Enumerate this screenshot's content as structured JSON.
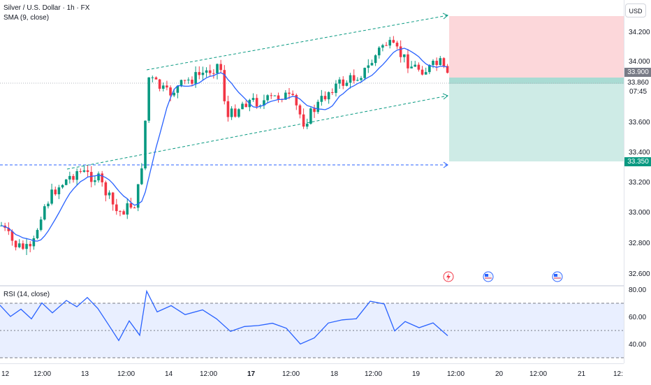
{
  "legend": {
    "symbol": "Silver / U.S. Dollar · 1h · FX",
    "sma": "SMA (9, close)",
    "rsi": "RSI (14, close)"
  },
  "currency": "USD",
  "price_axis": [
    "34.200",
    "34.000",
    "33.600",
    "33.400",
    "33.200",
    "33.000",
    "32.800",
    "32.600"
  ],
  "price_labels": {
    "current": "33.900",
    "last": "33.860",
    "countdown": "07:45",
    "target": "33.350"
  },
  "rsi_axis": [
    "80.00",
    "60.00",
    "40.00"
  ],
  "time_axis": [
    "12",
    "12:00",
    "13",
    "12:00",
    "14",
    "12:00",
    "17",
    "12:00",
    "18",
    "12:00",
    "19",
    "12:00",
    "20",
    "12:00",
    "21",
    "12:"
  ],
  "colors": {
    "up": "#089981",
    "down": "#f23645",
    "sma": "#2962ff",
    "rsi": "#2962ff",
    "channel": "#089981",
    "support": "#2962ff",
    "stop_zone": "#f23645",
    "target_zone": "#089981"
  },
  "events": [
    {
      "icon": "lightning-icon"
    },
    {
      "icon": "us-flag-icon"
    },
    {
      "icon": "us-flag-icon"
    }
  ]
}
